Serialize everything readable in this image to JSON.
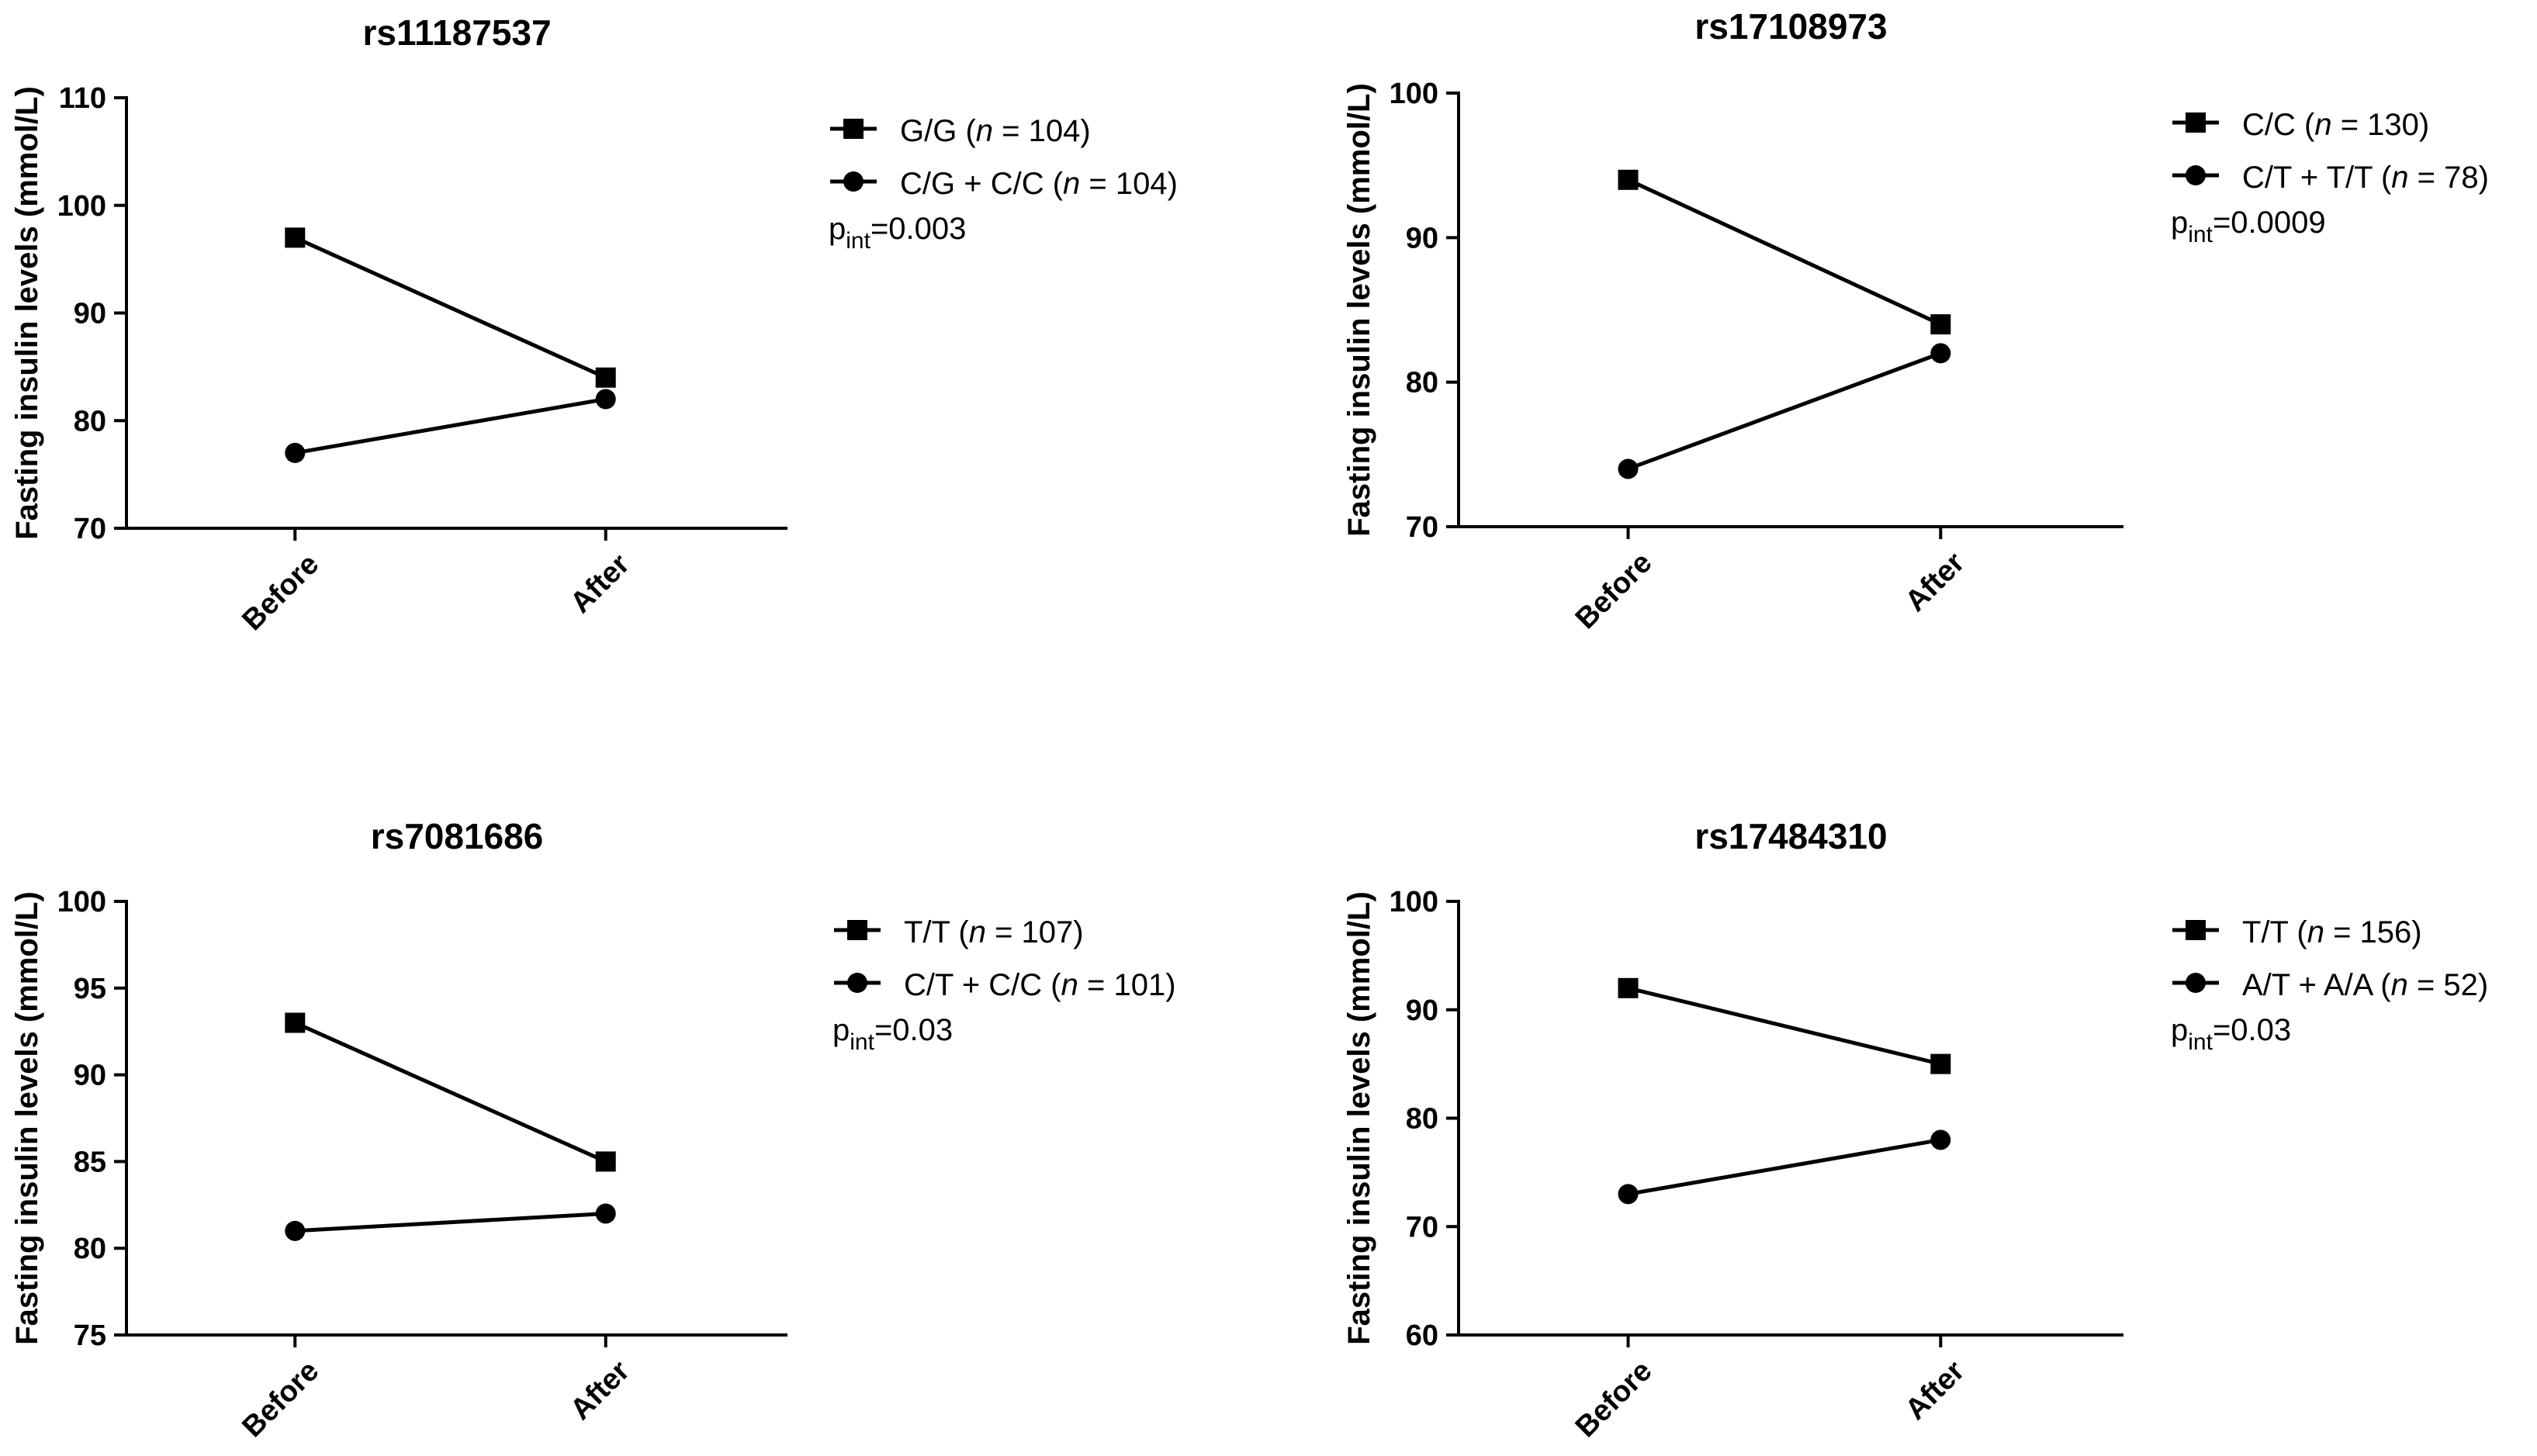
{
  "chart_data": [
    {
      "type": "line",
      "title": "rs11187537",
      "ylabel": "Fasting insulin levels (mmol/L)",
      "xlabel": "",
      "categories": [
        "Before",
        "After"
      ],
      "ylim": [
        70,
        110
      ],
      "yticks": [
        70,
        80,
        90,
        100,
        110
      ],
      "series": [
        {
          "name": "G/G",
          "n_label": "n",
          "n_value": "= 104)",
          "prefix": "G/G (",
          "marker": "square",
          "values": [
            97,
            84
          ]
        },
        {
          "name": "C/G + C/C",
          "n_label": "n",
          "n_value": "= 104)",
          "prefix": "C/G + C/C (",
          "marker": "circle",
          "values": [
            77,
            82
          ]
        }
      ],
      "pint": {
        "p": "p",
        "sub": "int",
        "value": "=0.003"
      }
    },
    {
      "type": "line",
      "title": "rs17108973",
      "ylabel": "Fasting insulin levels (mmol/L)",
      "xlabel": "",
      "categories": [
        "Before",
        "After"
      ],
      "ylim": [
        70,
        100
      ],
      "yticks": [
        70,
        80,
        90,
        100
      ],
      "series": [
        {
          "name": "C/C",
          "n_label": "n",
          "n_value": "= 130)",
          "prefix": "C/C (",
          "marker": "square",
          "values": [
            94,
            84
          ]
        },
        {
          "name": "C/T + T/T",
          "n_label": "n",
          "n_value": "= 78)",
          "prefix": "C/T + T/T (",
          "marker": "circle",
          "values": [
            74,
            82
          ]
        }
      ],
      "pint": {
        "p": "p",
        "sub": "int",
        "value": "=0.0009"
      }
    },
    {
      "type": "line",
      "title": "rs7081686",
      "ylabel": "Fasting insulin levels (mmol/L)",
      "xlabel": "",
      "categories": [
        "Before",
        "After"
      ],
      "ylim": [
        75,
        100
      ],
      "yticks": [
        75,
        80,
        85,
        90,
        95,
        100
      ],
      "series": [
        {
          "name": "T/T",
          "n_label": "n",
          "n_value": "= 107)",
          "prefix": "T/T (",
          "marker": "square",
          "values": [
            93,
            85
          ]
        },
        {
          "name": "C/T + C/C",
          "n_label": "n",
          "n_value": "= 101)",
          "prefix": "C/T + C/C (",
          "marker": "circle",
          "values": [
            81,
            82
          ]
        }
      ],
      "pint": {
        "p": "p",
        "sub": "int",
        "value": "=0.03"
      }
    },
    {
      "type": "line",
      "title": "rs17484310",
      "ylabel": "Fasting insulin levels (mmol/L)",
      "xlabel": "",
      "categories": [
        "Before",
        "After"
      ],
      "ylim": [
        60,
        100
      ],
      "yticks": [
        60,
        70,
        80,
        90,
        100
      ],
      "series": [
        {
          "name": "T/T",
          "n_label": "n",
          "n_value": "= 156)",
          "prefix": "T/T (",
          "marker": "square",
          "values": [
            92,
            85
          ]
        },
        {
          "name": "A/T + A/A",
          "n_label": "n",
          "n_value": "= 52)",
          "prefix": "A/T + A/A (",
          "marker": "circle",
          "values": [
            73,
            78
          ]
        }
      ],
      "pint": {
        "p": "p",
        "sub": "int",
        "value": "=0.03"
      }
    }
  ]
}
